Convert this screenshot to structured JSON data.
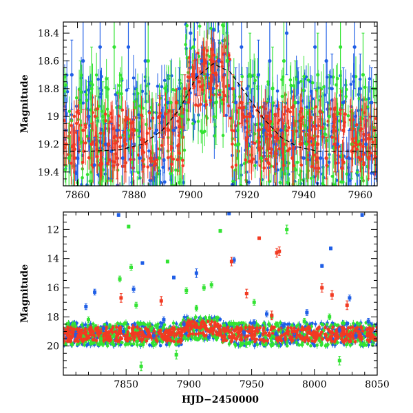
{
  "chart_data": [
    {
      "type": "scatter",
      "title": "",
      "xlabel": "",
      "ylabel": "Magnitude",
      "xlim": [
        7855,
        7966
      ],
      "ylim": [
        19.5,
        18.32
      ],
      "y_inverted": true,
      "xticks": [
        7860,
        7880,
        7900,
        7920,
        7940,
        7960
      ],
      "yticks": [
        18.4,
        18.6,
        18.8,
        19,
        19.2,
        19.4
      ],
      "grid": false,
      "legend": "none",
      "has_error_bars": true,
      "model_curve": {
        "style": "dashed",
        "color": "#000000",
        "x": [
          7855,
          7865,
          7875,
          7883,
          7890,
          7896,
          7902,
          7908,
          7914,
          7920,
          7926,
          7932,
          7938,
          7945,
          7952,
          7960,
          7966
        ],
        "y": [
          19.25,
          19.25,
          19.24,
          19.2,
          19.1,
          18.95,
          18.72,
          18.62,
          18.68,
          18.85,
          19.02,
          19.15,
          19.22,
          19.25,
          19.25,
          19.25,
          19.25
        ]
      },
      "series": [
        {
          "name": "",
          "color": "#1f5ee6",
          "x": [
            7856,
            7858,
            7860,
            7862,
            7864,
            7866,
            7868,
            7870,
            7872,
            7874,
            7876,
            7878,
            7880,
            7882,
            7884,
            7886,
            7888,
            7890,
            7892,
            7894,
            7896,
            7898,
            7900,
            7902,
            7904,
            7906,
            7908,
            7910,
            7912,
            7914,
            7916,
            7918,
            7920,
            7922,
            7924,
            7926,
            7928,
            7930,
            7932,
            7934,
            7936,
            7938,
            7940,
            7942,
            7944,
            7946,
            7948,
            7950,
            7952,
            7954,
            7956,
            7958,
            7960,
            7962,
            7964
          ],
          "y": [
            19.1,
            18.7,
            19.3,
            18.6,
            19.0,
            19.35,
            18.5,
            19.2,
            19.25,
            19.1,
            19.3,
            18.5,
            19.2,
            19.3,
            18.6,
            19.35,
            19.1,
            19.0,
            18.9,
            19.1,
            18.8,
            18.9,
            18.4,
            18.7,
            18.6,
            18.7,
            18.8,
            18.6,
            18.7,
            18.8,
            18.9,
            18.5,
            18.8,
            19.0,
            18.7,
            19.1,
            18.6,
            19.2,
            19.1,
            18.4,
            19.2,
            18.9,
            19.3,
            19.1,
            18.5,
            19.3,
            18.6,
            18.8,
            19.2,
            18.9,
            19.3,
            18.5,
            18.8,
            19.2,
            18.9
          ],
          "err": [
            0.2,
            0.25,
            0.2,
            0.3,
            0.25,
            0.2,
            0.3,
            0.15,
            0.2,
            0.25,
            0.2,
            0.3,
            0.2,
            0.15,
            0.3,
            0.2,
            0.2,
            0.15,
            0.2,
            0.15,
            0.15,
            0.2,
            0.25,
            0.15,
            0.1,
            0.1,
            0.1,
            0.15,
            0.15,
            0.2,
            0.25,
            0.2,
            0.15,
            0.2,
            0.25,
            0.2,
            0.3,
            0.2,
            0.2,
            0.3,
            0.2,
            0.25,
            0.2,
            0.2,
            0.3,
            0.2,
            0.3,
            0.25,
            0.2,
            0.25,
            0.2,
            0.3,
            0.25,
            0.2,
            0.25
          ]
        },
        {
          "name": "",
          "color": "#33e333",
          "x": [
            7857,
            7861,
            7865,
            7869,
            7873,
            7877,
            7881,
            7885,
            7889,
            7893,
            7897,
            7901,
            7905,
            7909,
            7913,
            7917,
            7921,
            7925,
            7929,
            7933,
            7937,
            7941,
            7945,
            7949,
            7953,
            7957,
            7961,
            7965
          ],
          "y": [
            19.3,
            18.9,
            18.8,
            19.0,
            18.5,
            19.2,
            19.1,
            18.6,
            19.3,
            18.9,
            19.0,
            18.5,
            18.7,
            18.9,
            18.6,
            19.2,
            18.7,
            19.3,
            18.8,
            18.6,
            18.9,
            19.2,
            18.7,
            19.0,
            18.5,
            19.2,
            18.7,
            19.1
          ],
          "err": [
            0.25,
            0.3,
            0.3,
            0.25,
            0.3,
            0.2,
            0.3,
            0.3,
            0.25,
            0.3,
            0.3,
            0.25,
            0.2,
            0.3,
            0.3,
            0.25,
            0.3,
            0.25,
            0.3,
            0.3,
            0.3,
            0.25,
            0.3,
            0.3,
            0.3,
            0.25,
            0.3,
            0.3
          ]
        },
        {
          "name": "",
          "color": "#f23a22",
          "x": [
            7856,
            7859,
            7862,
            7865,
            7868,
            7871,
            7874,
            7877,
            7880,
            7883,
            7886,
            7889,
            7892,
            7895,
            7898,
            7901,
            7903,
            7905,
            7907,
            7909,
            7912,
            7915,
            7918,
            7921,
            7924,
            7927,
            7930,
            7933,
            7936,
            7939,
            7942,
            7945,
            7948,
            7951,
            7954,
            7957,
            7960,
            7963,
            7965
          ],
          "y": [
            19.2,
            19.3,
            19.1,
            19.2,
            19.35,
            19.2,
            19.3,
            19.2,
            19.1,
            19.2,
            19.3,
            19.0,
            19.1,
            18.9,
            18.8,
            18.7,
            18.75,
            18.6,
            18.8,
            18.7,
            18.85,
            18.8,
            18.9,
            19.0,
            19.1,
            19.0,
            19.15,
            19.2,
            19.3,
            19.2,
            19.1,
            19.2,
            19.3,
            19.2,
            19.1,
            19.25,
            19.2,
            19.3,
            19.1
          ],
          "err": [
            0.15,
            0.2,
            0.15,
            0.15,
            0.2,
            0.15,
            0.15,
            0.2,
            0.15,
            0.2,
            0.15,
            0.15,
            0.15,
            0.1,
            0.1,
            0.1,
            0.1,
            0.1,
            0.1,
            0.1,
            0.15,
            0.1,
            0.15,
            0.1,
            0.15,
            0.1,
            0.15,
            0.15,
            0.2,
            0.15,
            0.15,
            0.2,
            0.15,
            0.2,
            0.15,
            0.15,
            0.2,
            0.15,
            0.2
          ]
        }
      ]
    },
    {
      "type": "scatter",
      "title": "",
      "xlabel": "HJD−2450000",
      "ylabel": "Magnitude",
      "xlim": [
        7800,
        8050
      ],
      "ylim": [
        22,
        10.8
      ],
      "y_inverted": true,
      "xticks": [
        7850,
        7900,
        7950,
        8000,
        8050
      ],
      "yticks": [
        12,
        14,
        16,
        18,
        20
      ],
      "grid": false,
      "legend": "none",
      "has_error_bars": true,
      "series": [
        {
          "name": "",
          "color": "#1f5ee6",
          "x": [
            7810,
            7818,
            7825,
            7832,
            7844,
            7848,
            7856,
            7863,
            7872,
            7880,
            7888,
            7896,
            7906,
            7916,
            7932,
            7936,
            7944,
            7952,
            7962,
            7975,
            7984,
            7994,
            8006,
            8013,
            8020,
            8028,
            8033,
            8038,
            8043
          ],
          "y": [
            19.2,
            17.3,
            16.3,
            18.8,
            11.0,
            19.0,
            16.1,
            14.3,
            19.3,
            18.2,
            15.3,
            18.5,
            15.0,
            19.4,
            10.9,
            14.1,
            19.1,
            18.4,
            17.8,
            18.6,
            19.2,
            17.7,
            14.5,
            13.3,
            18.9,
            16.7,
            19.3,
            11.0,
            18.3
          ],
          "err": [
            0.2,
            0.2,
            0.2,
            0.2,
            0.1,
            0.2,
            0.2,
            0.1,
            0.2,
            0.2,
            0.1,
            0.2,
            0.3,
            0.2,
            0.1,
            0.2,
            0.2,
            0.2,
            0.2,
            0.2,
            0.2,
            0.2,
            0.1,
            0.1,
            0.2,
            0.2,
            0.2,
            0.1,
            0.2
          ]
        },
        {
          "name": "",
          "color": "#33e333",
          "x": [
            7820,
            7830,
            7845,
            7852,
            7854,
            7858,
            7862,
            7870,
            7883,
            7890,
            7898,
            7906,
            7912,
            7918,
            7925,
            7928,
            7946,
            7952,
            7966,
            7978,
            7992,
            8004,
            8012,
            8020
          ],
          "y": [
            18.2,
            19.5,
            15.4,
            11.8,
            14.6,
            17.2,
            21.4,
            18.8,
            14.2,
            20.6,
            16.2,
            17.4,
            16.0,
            15.8,
            12.1,
            18.6,
            19.8,
            17.0,
            18.0,
            12.0,
            18.3,
            19.6,
            18.0,
            21.0
          ],
          "err": [
            0.2,
            0.2,
            0.2,
            0.1,
            0.2,
            0.2,
            0.3,
            0.2,
            0.1,
            0.3,
            0.2,
            0.2,
            0.2,
            0.2,
            0.1,
            0.2,
            0.3,
            0.2,
            0.2,
            0.3,
            0.2,
            0.2,
            0.2,
            0.3
          ]
        },
        {
          "name": "",
          "color": "#f23a22",
          "x": [
            7812,
            7822,
            7834,
            7846,
            7856,
            7868,
            7878,
            7886,
            7896,
            7906,
            7918,
            7928,
            7934,
            7940,
            7946,
            7956,
            7966,
            7970,
            7972,
            7984,
            7996,
            8006,
            8014,
            8026,
            8036,
            8044
          ],
          "y": [
            19.3,
            19.2,
            19.4,
            16.7,
            19.3,
            19.2,
            16.9,
            19.1,
            18.9,
            18.6,
            18.8,
            18.9,
            14.2,
            19.0,
            16.4,
            12.6,
            17.9,
            13.6,
            13.5,
            19.0,
            18.8,
            16.0,
            16.5,
            17.2,
            19.2,
            19.3
          ],
          "err": [
            0.2,
            0.2,
            0.2,
            0.3,
            0.2,
            0.2,
            0.3,
            0.2,
            0.2,
            0.2,
            0.2,
            0.2,
            0.3,
            0.2,
            0.3,
            0.1,
            0.3,
            0.3,
            0.3,
            0.2,
            0.2,
            0.3,
            0.3,
            0.3,
            0.2,
            0.2
          ]
        }
      ]
    }
  ]
}
